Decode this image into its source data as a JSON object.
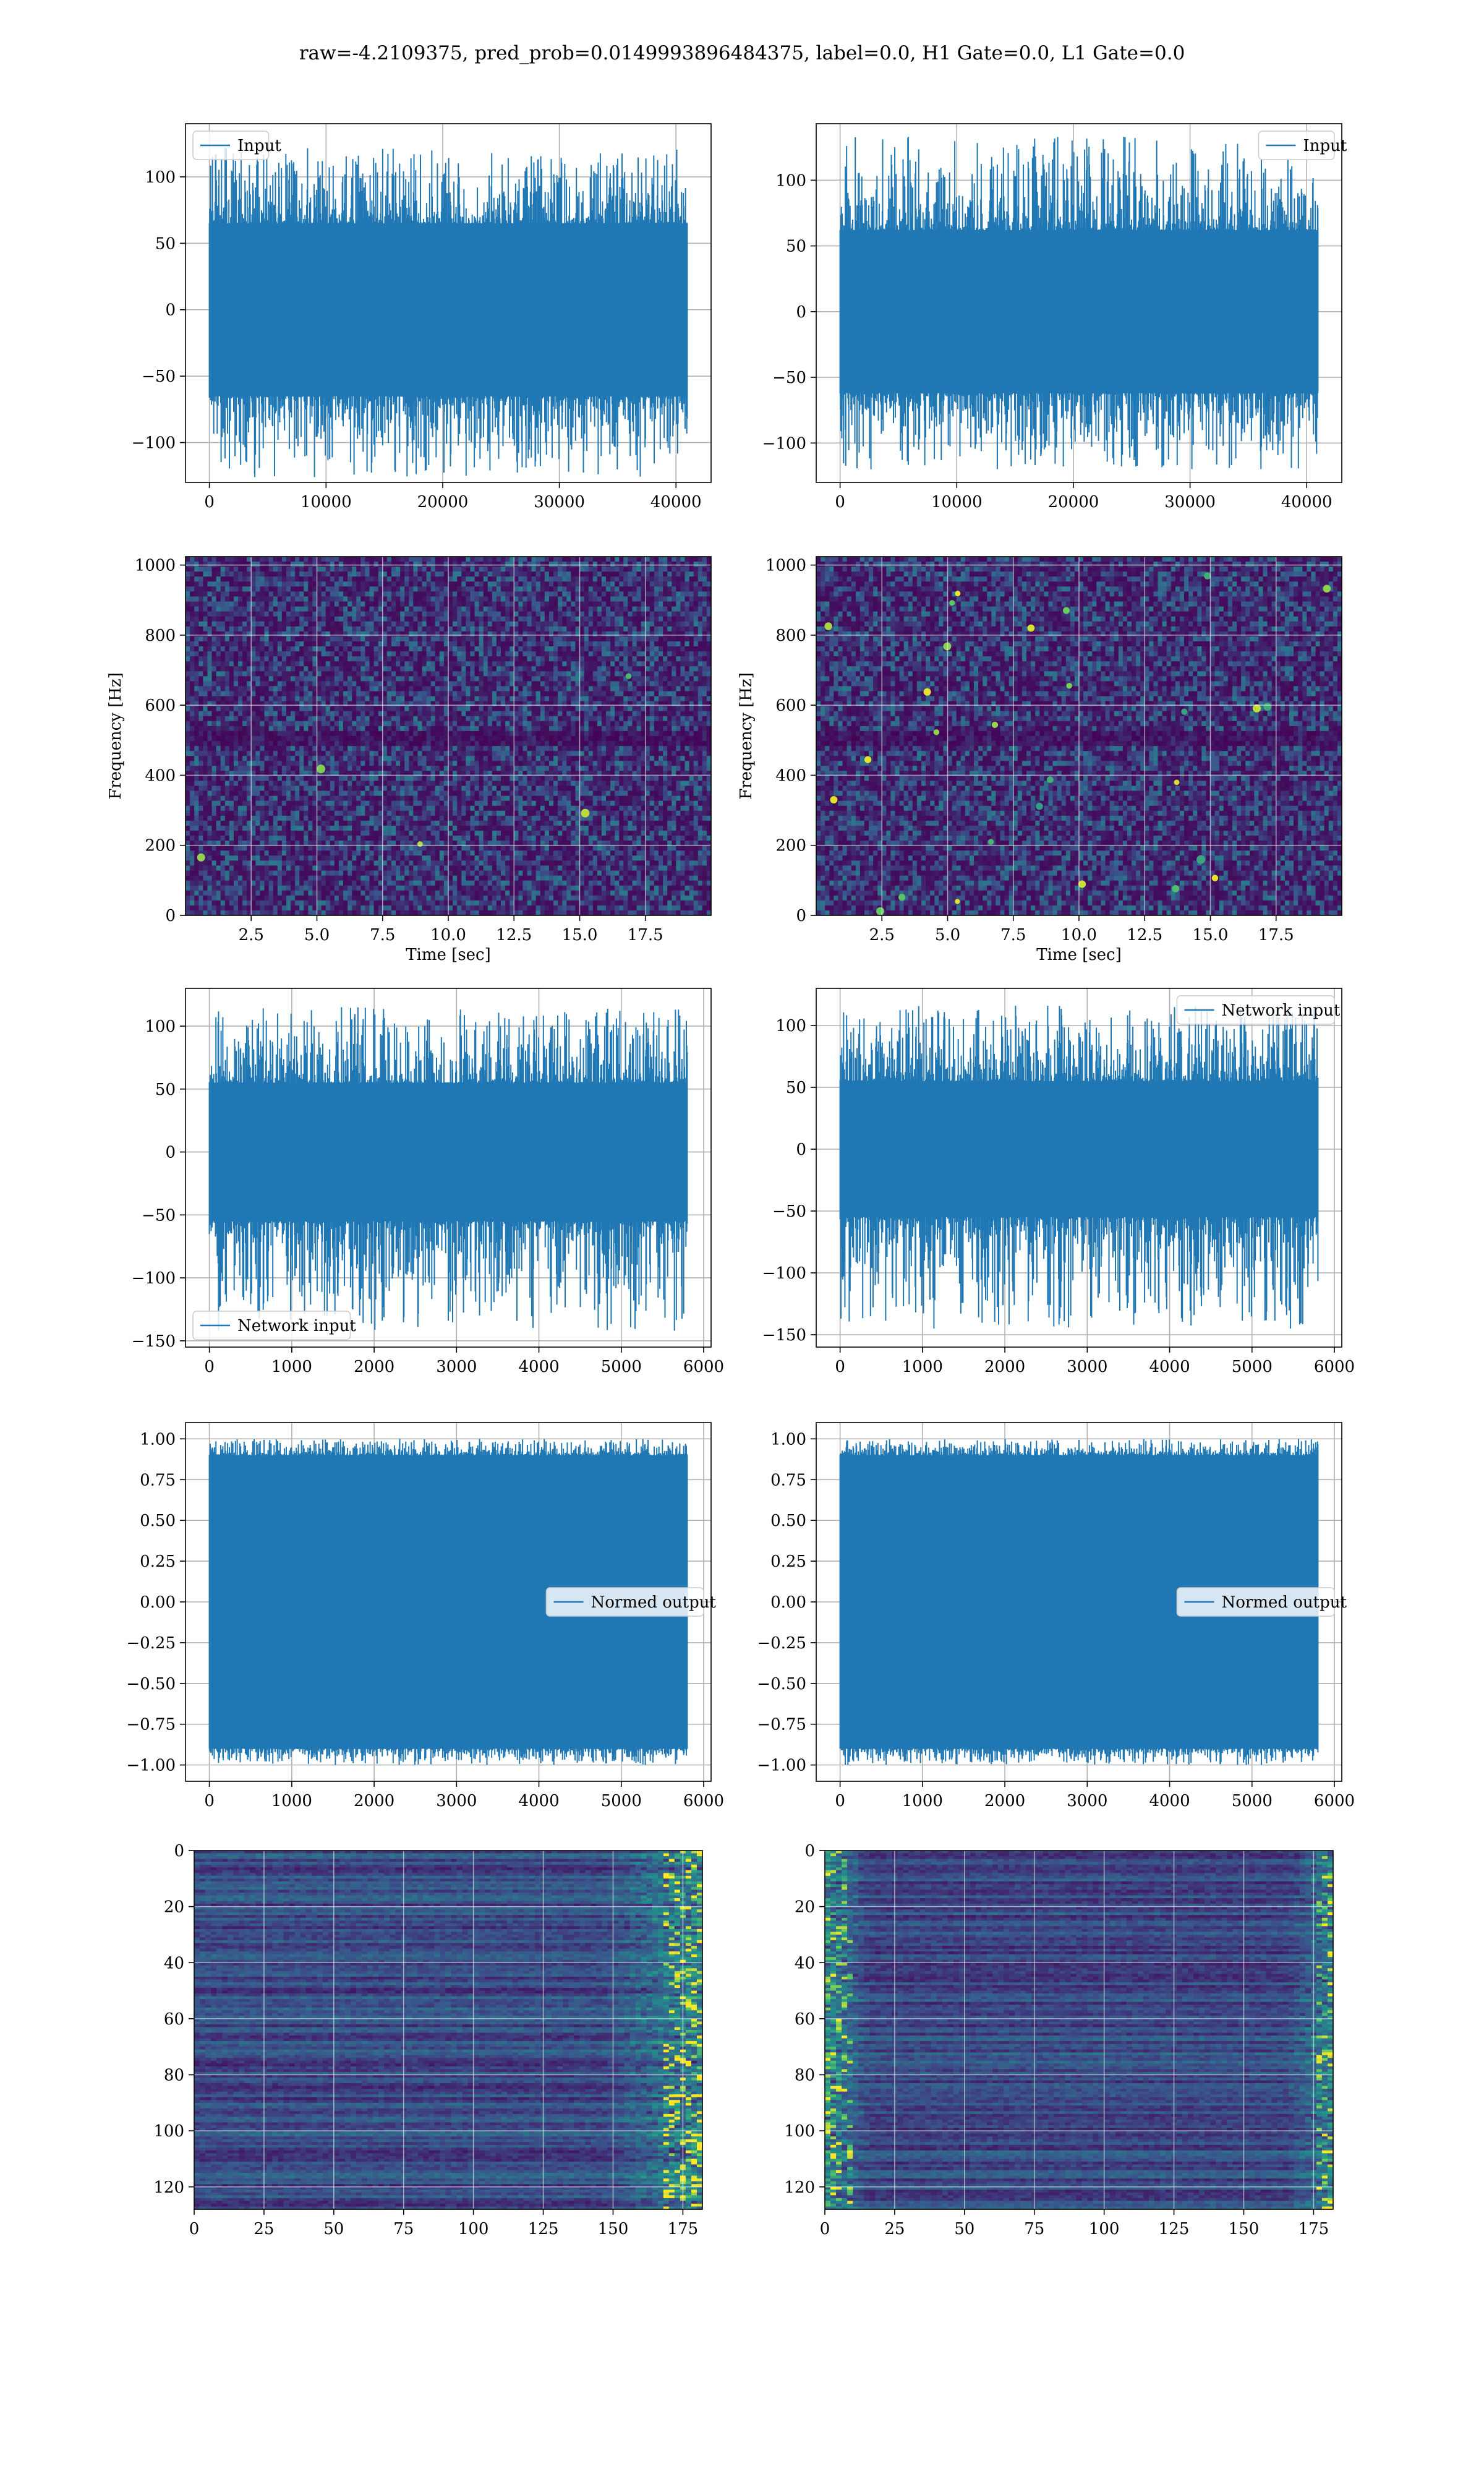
{
  "figure_title": "raw=-4.2109375, pred_prob=0.0149993896484375, label=0.0, H1 Gate=0.0, L1 Gate=0.0",
  "colors": {
    "series": "#1f77b4",
    "grid": "#b0b0b0",
    "viridis_low": "#440154",
    "viridis_mid": "#21918c",
    "viridis_high": "#fde725"
  },
  "chart_data": [
    {
      "id": "h1-input",
      "type": "line",
      "series": [
        {
          "name": "Input",
          "color": "#1f77b4"
        }
      ],
      "legend": "upper left",
      "x_range": [
        0,
        40960
      ],
      "xlim": [
        -2048,
        43008
      ],
      "ylim": [
        -130,
        140
      ],
      "envelope": {
        "upper": 65,
        "lower": -65,
        "peak_max": 122,
        "peak_min": -126
      },
      "x_ticks": [
        0,
        10000,
        20000,
        30000,
        40000
      ],
      "y_ticks": [
        -100,
        -50,
        0,
        50,
        100
      ],
      "x_tick_labels": [
        "0",
        "10000",
        "20000",
        "30000",
        "40000"
      ],
      "y_tick_labels": [
        "−100",
        "−50",
        "0",
        "50",
        "100"
      ],
      "grid": true
    },
    {
      "id": "l1-input",
      "type": "line",
      "series": [
        {
          "name": "Input",
          "color": "#1f77b4"
        }
      ],
      "legend": "upper right",
      "x_range": [
        0,
        40960
      ],
      "xlim": [
        -2048,
        43008
      ],
      "ylim": [
        -130,
        143
      ],
      "envelope": {
        "upper": 62,
        "lower": -62,
        "peak_max": 133,
        "peak_min": -120
      },
      "x_ticks": [
        0,
        10000,
        20000,
        30000,
        40000
      ],
      "y_ticks": [
        -100,
        -50,
        0,
        50,
        100
      ],
      "x_tick_labels": [
        "0",
        "10000",
        "20000",
        "30000",
        "40000"
      ],
      "y_tick_labels": [
        "−100",
        "−50",
        "0",
        "50",
        "100"
      ],
      "grid": true
    },
    {
      "id": "h1-spectrogram",
      "type": "heatmap",
      "colormap": "viridis",
      "seed": 17,
      "bright_points": 5,
      "xlabel": "Time [sec]",
      "ylabel": "Frequency [Hz]",
      "xlim": [
        0,
        20
      ],
      "ylim": [
        0,
        1024
      ],
      "x_ticks": [
        2.5,
        5.0,
        7.5,
        10.0,
        12.5,
        15.0,
        17.5
      ],
      "y_ticks": [
        0,
        200,
        400,
        600,
        800,
        1000
      ],
      "x_tick_labels": [
        "2.5",
        "5.0",
        "7.5",
        "10.0",
        "12.5",
        "15.0",
        "17.5"
      ],
      "y_tick_labels": [
        "0",
        "200",
        "400",
        "600",
        "800",
        "1000"
      ],
      "grid": true
    },
    {
      "id": "l1-spectrogram",
      "type": "heatmap",
      "colormap": "viridis",
      "seed": 29,
      "bright_points": 28,
      "xlabel": "Time [sec]",
      "ylabel": "Frequency [Hz]",
      "xlim": [
        0,
        20
      ],
      "ylim": [
        0,
        1024
      ],
      "x_ticks": [
        2.5,
        5.0,
        7.5,
        10.0,
        12.5,
        15.0,
        17.5
      ],
      "y_ticks": [
        0,
        200,
        400,
        600,
        800,
        1000
      ],
      "x_tick_labels": [
        "2.5",
        "5.0",
        "7.5",
        "10.0",
        "12.5",
        "15.0",
        "17.5"
      ],
      "y_tick_labels": [
        "0",
        "200",
        "400",
        "600",
        "800",
        "1000"
      ],
      "grid": true
    },
    {
      "id": "h1-network-input",
      "type": "line",
      "series": [
        {
          "name": "Network input",
          "color": "#1f77b4"
        }
      ],
      "legend": "lower left",
      "x_range": [
        0,
        5800
      ],
      "xlim": [
        -290,
        6090
      ],
      "ylim": [
        -155,
        130
      ],
      "envelope": {
        "upper": 55,
        "lower": -55,
        "peak_max": 115,
        "peak_min": -142
      },
      "x_ticks": [
        0,
        1000,
        2000,
        3000,
        4000,
        5000,
        6000
      ],
      "y_ticks": [
        -150,
        -100,
        -50,
        0,
        50,
        100
      ],
      "x_tick_labels": [
        "0",
        "1000",
        "2000",
        "3000",
        "4000",
        "5000",
        "6000"
      ],
      "y_tick_labels": [
        "−150",
        "−100",
        "−50",
        "0",
        "50",
        "100"
      ],
      "grid": true
    },
    {
      "id": "l1-network-input",
      "type": "line",
      "series": [
        {
          "name": "Network input",
          "color": "#1f77b4"
        }
      ],
      "legend": "upper right",
      "x_range": [
        0,
        5800
      ],
      "xlim": [
        -290,
        6090
      ],
      "ylim": [
        -160,
        130
      ],
      "envelope": {
        "upper": 55,
        "lower": -55,
        "peak_max": 117,
        "peak_min": -145
      },
      "x_ticks": [
        0,
        1000,
        2000,
        3000,
        4000,
        5000,
        6000
      ],
      "y_ticks": [
        -150,
        -100,
        -50,
        0,
        50,
        100
      ],
      "x_tick_labels": [
        "0",
        "1000",
        "2000",
        "3000",
        "4000",
        "5000",
        "6000"
      ],
      "y_tick_labels": [
        "−150",
        "−100",
        "−50",
        "0",
        "50",
        "100"
      ],
      "grid": true
    },
    {
      "id": "h1-normed-output",
      "type": "line",
      "series": [
        {
          "name": "Normed output",
          "color": "#1f77b4"
        }
      ],
      "legend": "center right",
      "x_range": [
        0,
        5800
      ],
      "xlim": [
        -290,
        6090
      ],
      "ylim": [
        -1.1,
        1.1
      ],
      "envelope": {
        "upper": 0.9,
        "lower": -0.9,
        "peak_max": 1.0,
        "peak_min": -1.0
      },
      "x_ticks": [
        0,
        1000,
        2000,
        3000,
        4000,
        5000,
        6000
      ],
      "y_ticks": [
        -1.0,
        -0.75,
        -0.5,
        -0.25,
        0.0,
        0.25,
        0.5,
        0.75,
        1.0
      ],
      "x_tick_labels": [
        "0",
        "1000",
        "2000",
        "3000",
        "4000",
        "5000",
        "6000"
      ],
      "y_tick_labels": [
        "−1.00",
        "−0.75",
        "−0.50",
        "−0.25",
        "0.00",
        "0.25",
        "0.50",
        "0.75",
        "1.00"
      ],
      "grid": true
    },
    {
      "id": "l1-normed-output",
      "type": "line",
      "series": [
        {
          "name": "Normed output",
          "color": "#1f77b4"
        }
      ],
      "legend": "center right",
      "x_range": [
        0,
        5800
      ],
      "xlim": [
        -290,
        6090
      ],
      "ylim": [
        -1.1,
        1.1
      ],
      "envelope": {
        "upper": 0.9,
        "lower": -0.9,
        "peak_max": 1.0,
        "peak_min": -1.0
      },
      "x_ticks": [
        0,
        1000,
        2000,
        3000,
        4000,
        5000,
        6000
      ],
      "y_ticks": [
        -1.0,
        -0.75,
        -0.5,
        -0.25,
        0.0,
        0.25,
        0.5,
        0.75,
        1.0
      ],
      "x_tick_labels": [
        "0",
        "1000",
        "2000",
        "3000",
        "4000",
        "5000",
        "6000"
      ],
      "y_tick_labels": [
        "−1.00",
        "−0.75",
        "−0.50",
        "−0.25",
        "0.00",
        "0.25",
        "0.50",
        "0.75",
        "1.00"
      ],
      "grid": true
    },
    {
      "id": "h1-feature-map",
      "type": "heatmap",
      "colormap": "viridis",
      "seed": 41,
      "rows": 128,
      "cols": 182,
      "pattern": "row-stripes-bright-right",
      "xlim": [
        0,
        182
      ],
      "ylim": [
        128,
        0
      ],
      "x_ticks": [
        0,
        25,
        50,
        75,
        100,
        125,
        150,
        175
      ],
      "y_ticks": [
        0,
        20,
        40,
        60,
        80,
        100,
        120
      ],
      "x_tick_labels": [
        "0",
        "25",
        "50",
        "75",
        "100",
        "125",
        "150",
        "175"
      ],
      "y_tick_labels": [
        "0",
        "20",
        "40",
        "60",
        "80",
        "100",
        "120"
      ],
      "grid": true
    },
    {
      "id": "l1-feature-map",
      "type": "heatmap",
      "colormap": "viridis",
      "seed": 53,
      "rows": 128,
      "cols": 182,
      "pattern": "row-stripes-bright-edges",
      "xlim": [
        0,
        182
      ],
      "ylim": [
        128,
        0
      ],
      "x_ticks": [
        0,
        25,
        50,
        75,
        100,
        125,
        150,
        175
      ],
      "y_ticks": [
        0,
        20,
        40,
        60,
        80,
        100,
        120
      ],
      "x_tick_labels": [
        "0",
        "25",
        "50",
        "75",
        "100",
        "125",
        "150",
        "175"
      ],
      "y_tick_labels": [
        "0",
        "20",
        "40",
        "60",
        "80",
        "100",
        "120"
      ],
      "grid": true
    }
  ]
}
